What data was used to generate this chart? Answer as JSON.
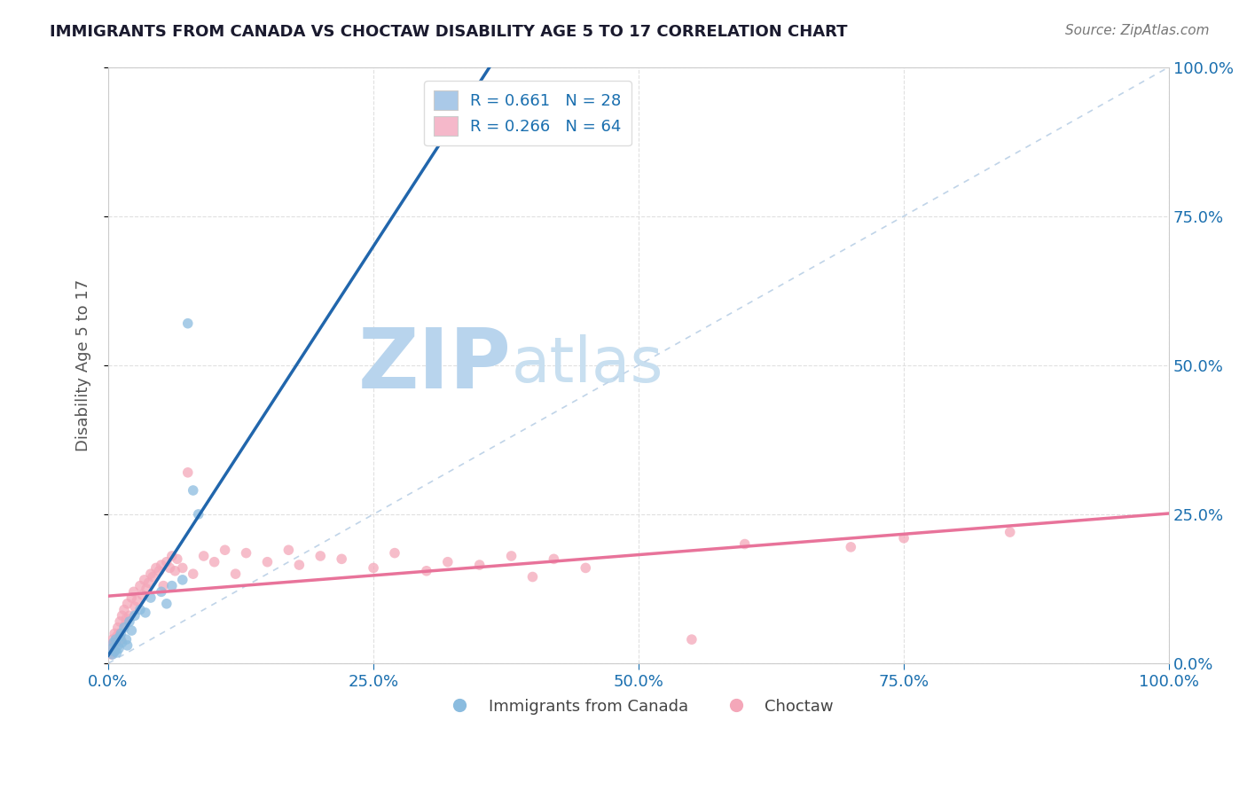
{
  "title": "IMMIGRANTS FROM CANADA VS CHOCTAW DISABILITY AGE 5 TO 17 CORRELATION CHART",
  "source_text": "Source: ZipAtlas.com",
  "ylabel": "Disability Age 5 to 17",
  "x_tick_labels": [
    "0.0%",
    "25.0%",
    "50.0%",
    "75.0%",
    "100.0%"
  ],
  "x_tick_vals": [
    0,
    25,
    50,
    75,
    100
  ],
  "y_tick_labels": [
    "0.0%",
    "25.0%",
    "50.0%",
    "75.0%",
    "100.0%"
  ],
  "y_tick_vals": [
    0,
    25,
    50,
    75,
    100
  ],
  "xlim": [
    0,
    100
  ],
  "ylim": [
    0,
    100
  ],
  "legend_entries": [
    {
      "label": "R = 0.661   N = 28",
      "color": "#aac9e8"
    },
    {
      "label": "R = 0.266   N = 64",
      "color": "#f5b8ca"
    }
  ],
  "blue_scatter": [
    [
      0.3,
      2.5
    ],
    [
      0.4,
      1.5
    ],
    [
      0.5,
      3.5
    ],
    [
      0.6,
      2.0
    ],
    [
      0.7,
      4.0
    ],
    [
      0.8,
      1.8
    ],
    [
      0.9,
      3.0
    ],
    [
      1.0,
      2.5
    ],
    [
      1.1,
      4.5
    ],
    [
      1.2,
      5.0
    ],
    [
      1.3,
      3.5
    ],
    [
      1.5,
      6.0
    ],
    [
      1.7,
      4.0
    ],
    [
      1.8,
      3.0
    ],
    [
      2.0,
      7.0
    ],
    [
      2.2,
      5.5
    ],
    [
      2.5,
      8.0
    ],
    [
      3.0,
      9.0
    ],
    [
      3.5,
      8.5
    ],
    [
      4.0,
      11.0
    ],
    [
      5.0,
      12.0
    ],
    [
      5.5,
      10.0
    ],
    [
      6.0,
      13.0
    ],
    [
      7.0,
      14.0
    ],
    [
      7.5,
      57.0
    ],
    [
      8.0,
      29.0
    ],
    [
      8.5,
      25.0
    ],
    [
      35.0,
      93.0
    ]
  ],
  "pink_scatter": [
    [
      0.2,
      3.0
    ],
    [
      0.3,
      1.5
    ],
    [
      0.4,
      4.0
    ],
    [
      0.5,
      2.0
    ],
    [
      0.6,
      5.0
    ],
    [
      0.7,
      3.5
    ],
    [
      0.8,
      4.5
    ],
    [
      0.9,
      6.0
    ],
    [
      1.0,
      5.0
    ],
    [
      1.1,
      7.0
    ],
    [
      1.2,
      4.0
    ],
    [
      1.3,
      8.0
    ],
    [
      1.5,
      9.0
    ],
    [
      1.6,
      6.5
    ],
    [
      1.7,
      7.5
    ],
    [
      1.8,
      10.0
    ],
    [
      2.0,
      8.0
    ],
    [
      2.2,
      11.0
    ],
    [
      2.4,
      12.0
    ],
    [
      2.5,
      9.5
    ],
    [
      2.7,
      10.5
    ],
    [
      3.0,
      13.0
    ],
    [
      3.2,
      11.5
    ],
    [
      3.4,
      14.0
    ],
    [
      3.6,
      12.5
    ],
    [
      3.8,
      13.5
    ],
    [
      4.0,
      15.0
    ],
    [
      4.2,
      14.5
    ],
    [
      4.5,
      16.0
    ],
    [
      4.8,
      15.5
    ],
    [
      5.0,
      16.5
    ],
    [
      5.2,
      13.0
    ],
    [
      5.5,
      17.0
    ],
    [
      5.8,
      16.0
    ],
    [
      6.0,
      18.0
    ],
    [
      6.3,
      15.5
    ],
    [
      6.5,
      17.5
    ],
    [
      7.0,
      16.0
    ],
    [
      7.5,
      32.0
    ],
    [
      8.0,
      15.0
    ],
    [
      9.0,
      18.0
    ],
    [
      10.0,
      17.0
    ],
    [
      11.0,
      19.0
    ],
    [
      12.0,
      15.0
    ],
    [
      13.0,
      18.5
    ],
    [
      15.0,
      17.0
    ],
    [
      17.0,
      19.0
    ],
    [
      18.0,
      16.5
    ],
    [
      20.0,
      18.0
    ],
    [
      22.0,
      17.5
    ],
    [
      25.0,
      16.0
    ],
    [
      27.0,
      18.5
    ],
    [
      30.0,
      15.5
    ],
    [
      32.0,
      17.0
    ],
    [
      35.0,
      16.5
    ],
    [
      38.0,
      18.0
    ],
    [
      40.0,
      14.5
    ],
    [
      42.0,
      17.5
    ],
    [
      45.0,
      16.0
    ],
    [
      55.0,
      4.0
    ],
    [
      60.0,
      20.0
    ],
    [
      70.0,
      19.5
    ],
    [
      75.0,
      21.0
    ],
    [
      85.0,
      22.0
    ]
  ],
  "blue_line": [
    0,
    100
  ],
  "blue_line_y": [
    -8.0,
    110.0
  ],
  "pink_line": [
    0,
    100
  ],
  "pink_line_y": [
    5.5,
    20.0
  ],
  "blue_color": "#8bbcdf",
  "pink_color": "#f4a7b9",
  "blue_line_color": "#2166ac",
  "pink_line_color": "#e8739a",
  "ref_line_color": "#c0d4e8",
  "scatter_alpha": 0.75,
  "scatter_size": 70,
  "background_color": "#ffffff",
  "grid_color": "#dddddd",
  "title_color": "#1a1a2e",
  "axis_label_color": "#555555",
  "tick_label_color": "#1a6faf",
  "watermark_text": "ZIP",
  "watermark_text2": "atlas",
  "watermark_color": "#ccdff0",
  "watermark_fontsize": 68
}
